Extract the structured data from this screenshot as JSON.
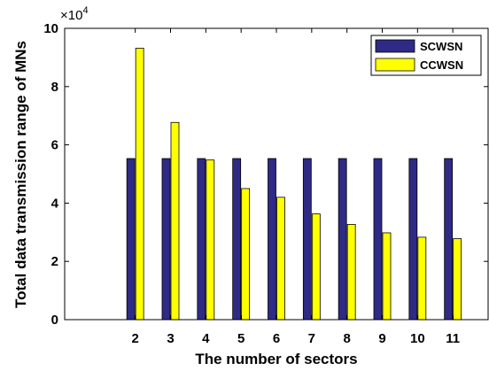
{
  "chart_data": {
    "type": "bar",
    "xlabel": "The number of sectors",
    "ylabel": "Total data transmission range of MNs",
    "categories": [
      "2",
      "3",
      "4",
      "5",
      "6",
      "7",
      "8",
      "9",
      "10",
      "11"
    ],
    "x_max": 12,
    "ylim": [
      0,
      100000
    ],
    "y_ticks": [
      0,
      20000,
      40000,
      60000,
      80000,
      100000
    ],
    "y_tick_labels": [
      "0",
      "2",
      "4",
      "6",
      "8",
      "10"
    ],
    "y_multiplier": {
      "base": "×10",
      "exponent": "4"
    },
    "series": [
      {
        "name": "SCWSN",
        "color": "#2e2a86",
        "values": [
          55300,
          55300,
          55300,
          55300,
          55300,
          55300,
          55300,
          55300,
          55300,
          55300
        ]
      },
      {
        "name": "CCWSN",
        "color": "#ffff00",
        "values": [
          93200,
          67700,
          54800,
          45000,
          42000,
          36300,
          32700,
          29800,
          28300,
          27800
        ]
      }
    ],
    "legend_position": "top-right",
    "grid": false
  }
}
